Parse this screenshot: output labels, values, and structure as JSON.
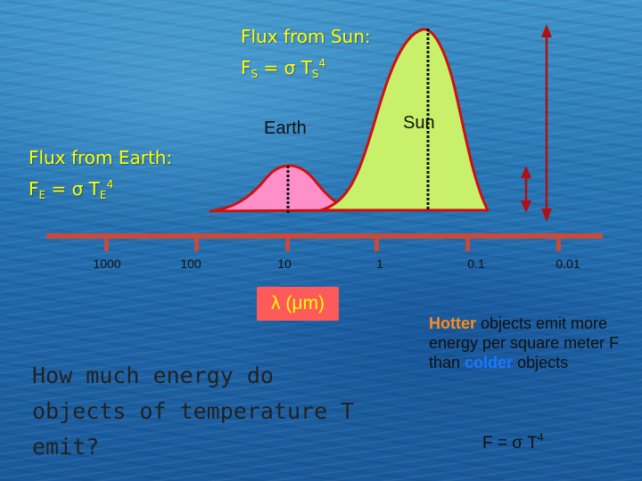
{
  "flux_sun": {
    "text": "Flux from Sun:",
    "F": "F",
    "sub": "S",
    "eq": " = σ T",
    "sub2": "S",
    "exp": "4"
  },
  "flux_earth": {
    "text": "Flux from Earth:",
    "F": "F",
    "sub": "E",
    "eq": " = σ T",
    "sub2": "E",
    "exp": "4"
  },
  "curves": {
    "earth_label": "Earth",
    "sun_label": "Sun"
  },
  "axis": {
    "ticks": [
      "1000",
      "100",
      "10",
      "1",
      "0.1",
      "0.01"
    ],
    "unit_label": "λ (μm)"
  },
  "question": "How much energy do objects of temperature T emit?",
  "hotter": {
    "w1": "Hotter",
    "w2": " objects emit more energy per square meter F than ",
    "w3": "colder",
    "w4": " objects"
  },
  "formula": {
    "main": "F = σ T",
    "exp": "4"
  },
  "colors": {
    "earth_curve_fill": "#ff8fc8",
    "sun_curve_fill": "#c8f06a",
    "curve_outline": "#cc1111",
    "axis": "#c84a3a",
    "arrow": "#b01010",
    "flux_text": "#ffff00",
    "lambda_box": "#ff5a5a"
  }
}
